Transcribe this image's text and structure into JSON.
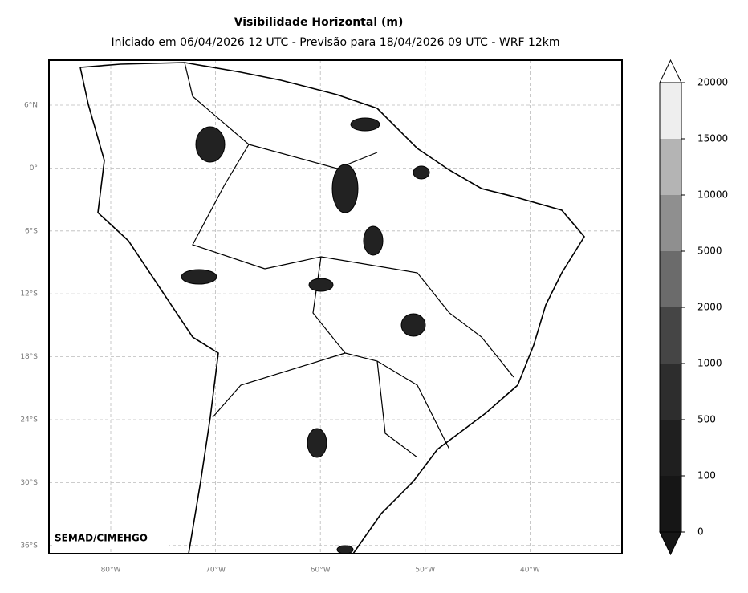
{
  "header": {
    "title": "Visibilidade Horizontal (m)",
    "subtitle": "Iniciado em 06/04/2026 12 UTC - Previsão para 18/04/2026 09 UTC - WRF 12km"
  },
  "map": {
    "lat_labels": [
      "6°N",
      "0°",
      "6°S",
      "12°S",
      "18°S",
      "24°S",
      "30°S",
      "36°S"
    ],
    "lon_labels": [
      "80°W",
      "70°W",
      "60°W",
      "50°W",
      "40°W"
    ],
    "credit": "SEMAD/CIMEHGO"
  },
  "colorbar": {
    "levels": [
      0,
      100,
      500,
      1000,
      2000,
      5000,
      10000,
      15000,
      20000
    ],
    "colors": [
      "#161616",
      "#1f1f1f",
      "#2d2d2d",
      "#454545",
      "#6b6b6b",
      "#8f8f8f",
      "#b4b4b4",
      "#eeeeee"
    ]
  }
}
